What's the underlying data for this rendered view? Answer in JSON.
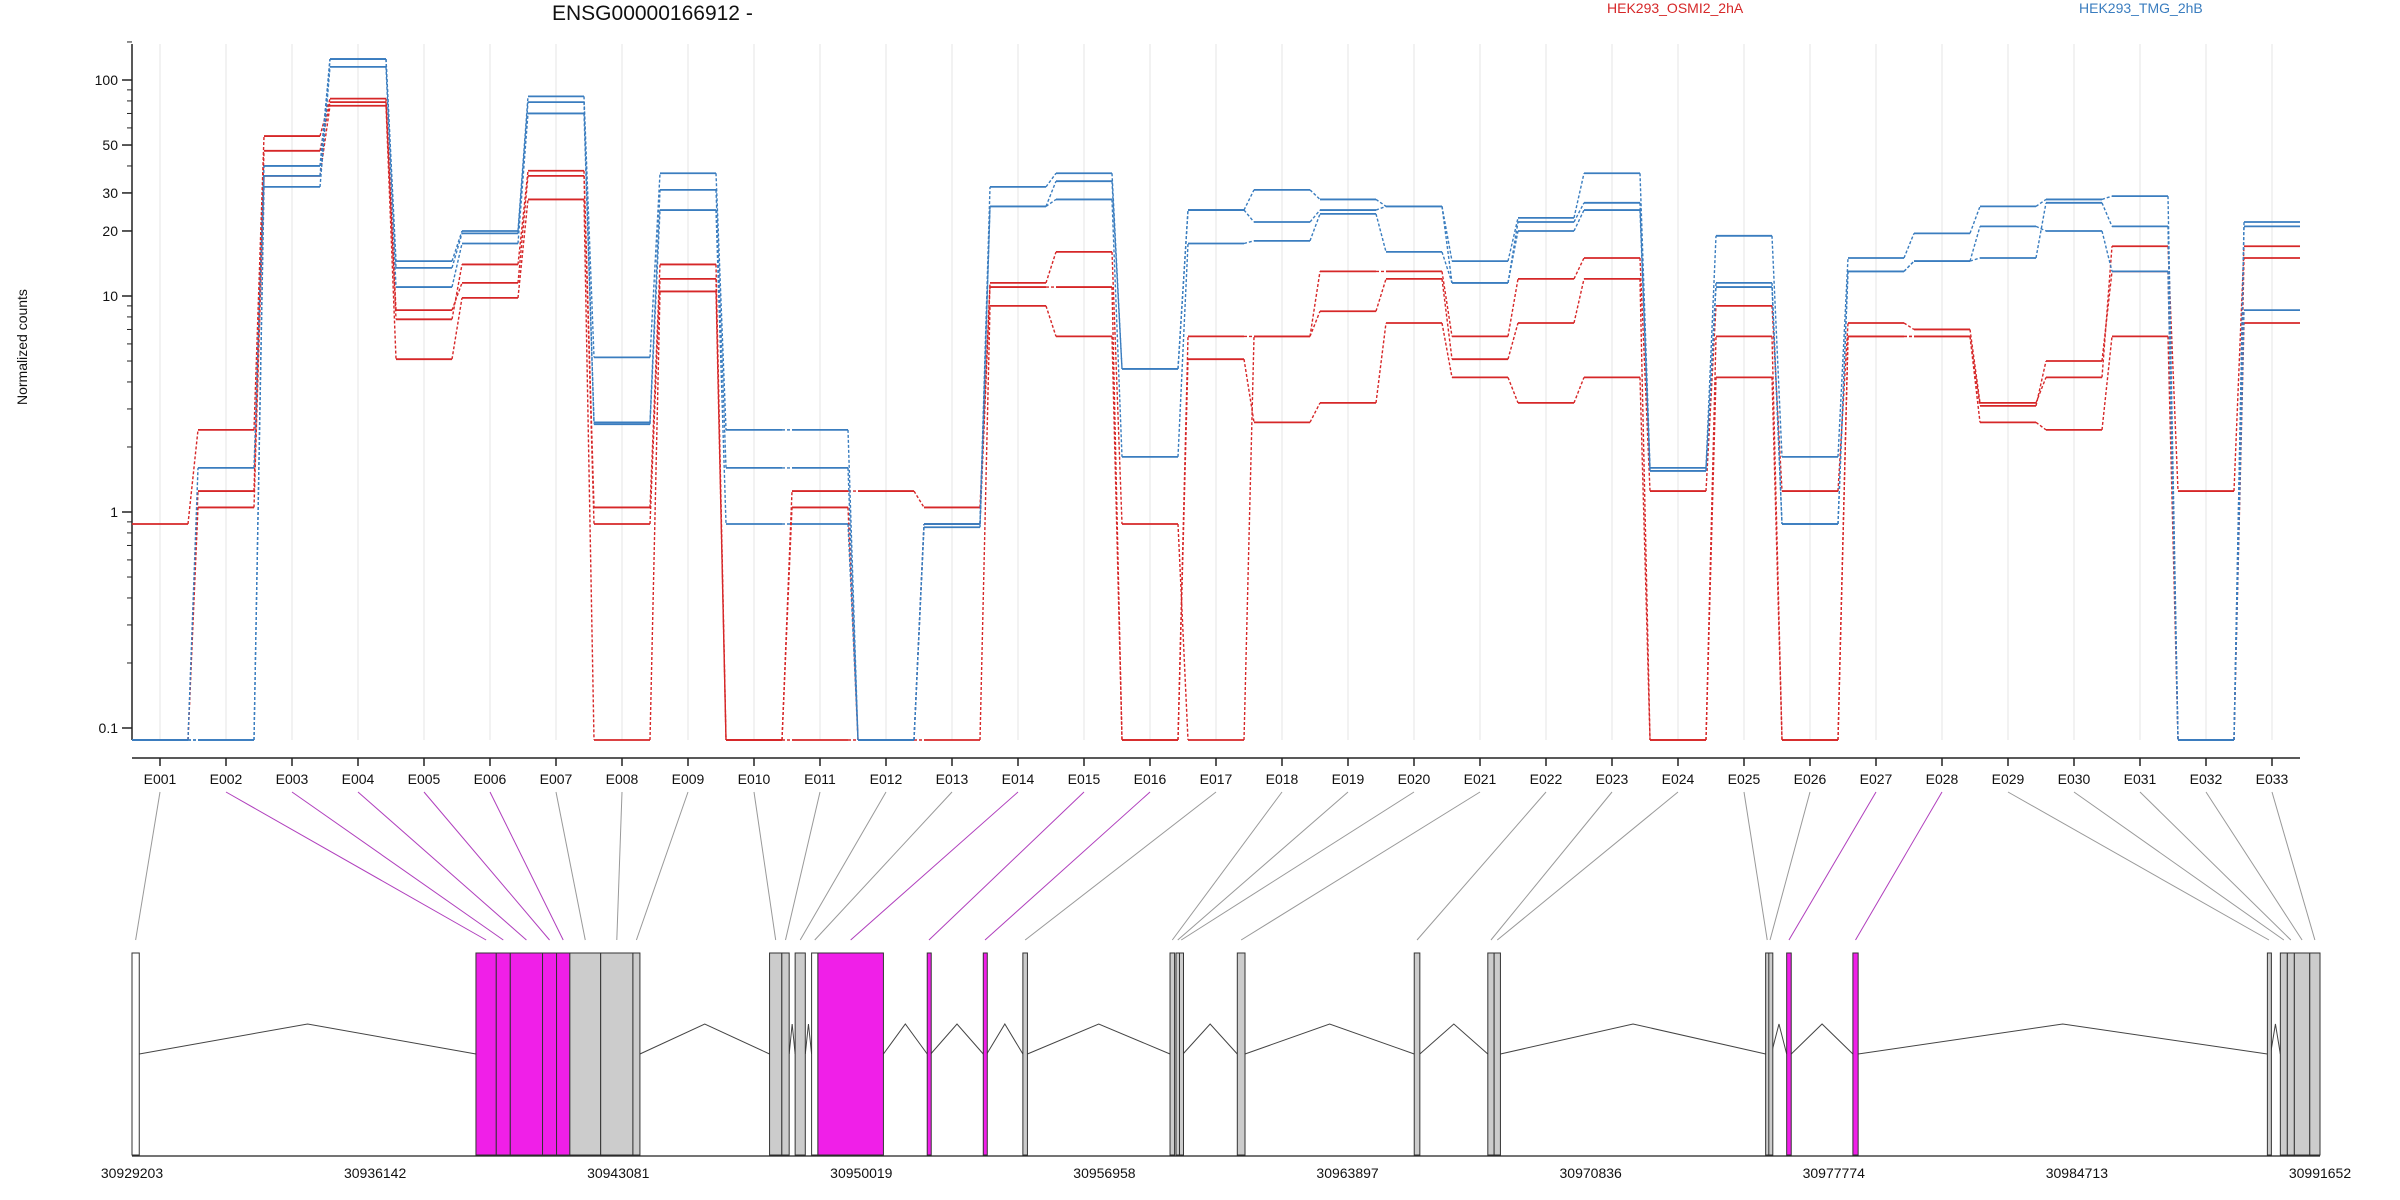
{
  "chart_data": {
    "type": "line",
    "title": "ENSG00000166912 -",
    "ylabel": "Normalized counts",
    "yscale": "log-like",
    "y_ticks": [
      "0.1",
      "1",
      "10",
      "20",
      "30",
      "50",
      "100"
    ],
    "ylim": [
      0,
      160
    ],
    "categories": [
      "E001",
      "E002",
      "E003",
      "E004",
      "E005",
      "E006",
      "E007",
      "E008",
      "E009",
      "E010",
      "E011",
      "E012",
      "E013",
      "E014",
      "E015",
      "E016",
      "E017",
      "E018",
      "E019",
      "E020",
      "E021",
      "E022",
      "E023",
      "E024",
      "E025",
      "E026",
      "E027",
      "E028",
      "E029",
      "E030",
      "E031",
      "E032",
      "E033"
    ],
    "colors": {
      "HEK293_OSMI2_2hA": "#d62728",
      "HEK293_TMG_2hB": "#3a7dbf"
    },
    "legend": [
      {
        "name": "HEK293_OSMI2_2hA",
        "color": "#d62728"
      },
      {
        "name": "HEK293_TMG_2hB",
        "color": "#3a7dbf"
      }
    ],
    "series": [
      {
        "group": "HEK293_OSMI2_2hA",
        "color": "#d62728",
        "values": [
          0.88,
          2.4,
          55,
          82,
          7.8,
          14,
          38,
          1.05,
          14,
          0,
          1.25,
          1.25,
          1.05,
          11.5,
          16,
          0.88,
          0,
          6.5,
          13,
          13,
          6.5,
          12,
          15,
          1.25,
          9,
          1.25,
          7.5,
          7,
          3.2,
          4.2,
          17,
          1.25,
          17
        ]
      },
      {
        "group": "HEK293_OSMI2_2hA",
        "color": "#d62728",
        "values": [
          0,
          1.25,
          47,
          79,
          8.6,
          11.5,
          36,
          0.88,
          12,
          0,
          1.05,
          0,
          0.88,
          11,
          11,
          0,
          6.5,
          6.5,
          8.5,
          12,
          5.1,
          7.5,
          12,
          0,
          6.5,
          0,
          6.5,
          6.5,
          3.1,
          5,
          13,
          0,
          15
        ]
      },
      {
        "group": "HEK293_OSMI2_2hA",
        "color": "#d62728",
        "values": [
          0,
          1.05,
          36,
          76,
          5.1,
          9.8,
          28,
          0,
          10.5,
          0,
          0,
          0,
          0,
          9,
          6.5,
          0,
          5.1,
          2.6,
          3.2,
          7.5,
          4.2,
          3.2,
          4.2,
          0,
          4.2,
          0,
          6.5,
          6.5,
          2.6,
          2.4,
          6.5,
          0,
          7.5
        ]
      },
      {
        "group": "HEK293_TMG_2hB",
        "color": "#3a7dbf",
        "values": [
          0,
          1.6,
          40,
          125,
          14.5,
          20,
          84,
          5.2,
          37,
          2.4,
          2.4,
          0,
          0.88,
          32,
          37,
          4.6,
          25,
          31,
          28,
          26,
          14.5,
          23,
          37,
          1.6,
          19,
          1.8,
          15,
          19.5,
          26,
          28,
          29,
          0,
          22
        ]
      },
      {
        "group": "HEK293_TMG_2hB",
        "color": "#3a7dbf",
        "values": [
          0,
          0,
          36,
          125,
          13.5,
          19.5,
          79,
          2.6,
          31,
          1.6,
          1.6,
          0,
          0.88,
          26,
          34,
          4.6,
          25,
          22,
          25,
          26,
          11.5,
          22,
          27,
          1.55,
          11.5,
          0.88,
          13,
          14.5,
          15,
          27,
          21,
          0,
          21
        ]
      },
      {
        "group": "HEK293_TMG_2hB",
        "color": "#3a7dbf",
        "values": [
          0,
          0,
          32,
          115,
          11,
          17.5,
          70,
          2.55,
          25,
          0.88,
          0.88,
          0,
          0.85,
          26,
          28,
          1.8,
          17.5,
          18,
          24,
          16,
          11.5,
          20,
          25,
          1.55,
          11,
          0.88,
          13,
          14.5,
          21,
          20,
          13,
          0,
          8.6
        ]
      }
    ],
    "gene_model": {
      "coordinate_ticks": [
        "30929203",
        "30936142",
        "30943081",
        "30950019",
        "30956958",
        "30963897",
        "30970836",
        "30977774",
        "30984713",
        "30991652"
      ],
      "start": 30929203,
      "end": 30991652,
      "highlight_color": "#f01fe8",
      "normal_color": "#cccccc",
      "exons": [
        {
          "id": "E001",
          "start": 30929203,
          "end": 30929410,
          "highlight": false,
          "fill": "none"
        },
        {
          "id": "E002",
          "start": 30939020,
          "end": 30939600,
          "highlight": true
        },
        {
          "id": "E003",
          "start": 30939600,
          "end": 30940000,
          "highlight": true
        },
        {
          "id": "E004",
          "start": 30940000,
          "end": 30940920,
          "highlight": true
        },
        {
          "id": "E005",
          "start": 30940920,
          "end": 30941320,
          "highlight": true
        },
        {
          "id": "E006",
          "start": 30941320,
          "end": 30941700,
          "highlight": true
        },
        {
          "id": "E007",
          "start": 30941700,
          "end": 30942580,
          "highlight": false
        },
        {
          "id": "E008",
          "start": 30942580,
          "end": 30943500,
          "highlight": false
        },
        {
          "id": "E009",
          "start": 30943500,
          "end": 30943700,
          "highlight": false
        },
        {
          "id": "E010",
          "start": 30947400,
          "end": 30947750,
          "highlight": false
        },
        {
          "id": "E011",
          "start": 30947750,
          "end": 30947960,
          "highlight": false
        },
        {
          "id": "E012",
          "start": 30948130,
          "end": 30948420,
          "highlight": false
        },
        {
          "id": "E013",
          "start": 30948600,
          "end": 30948780,
          "highlight": false,
          "fill": "none"
        },
        {
          "id": "E014",
          "start": 30948780,
          "end": 30950650,
          "highlight": true
        },
        {
          "id": "E015",
          "start": 30951900,
          "end": 30952000,
          "highlight": true
        },
        {
          "id": "E016",
          "start": 30953500,
          "end": 30953600,
          "highlight": true
        },
        {
          "id": "E017",
          "start": 30954630,
          "end": 30954760,
          "highlight": false
        },
        {
          "id": "E018",
          "start": 30958830,
          "end": 30958960,
          "highlight": false
        },
        {
          "id": "E019",
          "start": 30959000,
          "end": 30959100,
          "highlight": false
        },
        {
          "id": "E020",
          "start": 30959100,
          "end": 30959200,
          "highlight": false
        },
        {
          "id": "E021",
          "start": 30960750,
          "end": 30960970,
          "highlight": false
        },
        {
          "id": "E022",
          "start": 30965800,
          "end": 30965960,
          "highlight": false
        },
        {
          "id": "E023",
          "start": 30967900,
          "end": 30968080,
          "highlight": false
        },
        {
          "id": "E024",
          "start": 30968080,
          "end": 30968260,
          "highlight": false
        },
        {
          "id": "E025",
          "start": 30975830,
          "end": 30975920,
          "highlight": false
        },
        {
          "id": "E026",
          "start": 30975920,
          "end": 30975990,
          "highlight": false
        },
        {
          "id": "E027",
          "start": 30976430,
          "end": 30976560,
          "highlight": true
        },
        {
          "id": "E028",
          "start": 30978320,
          "end": 30978470,
          "highlight": true
        },
        {
          "id": "E029",
          "start": 30990150,
          "end": 30990240,
          "highlight": false
        },
        {
          "id": "E030",
          "start": 30990520,
          "end": 30990720,
          "highlight": false
        },
        {
          "id": "E031",
          "start": 30990720,
          "end": 30990920,
          "highlight": false
        },
        {
          "id": "E032",
          "start": 30990920,
          "end": 30991360,
          "highlight": false
        },
        {
          "id": "E033",
          "start": 30991360,
          "end": 30991652,
          "highlight": false
        }
      ]
    }
  }
}
